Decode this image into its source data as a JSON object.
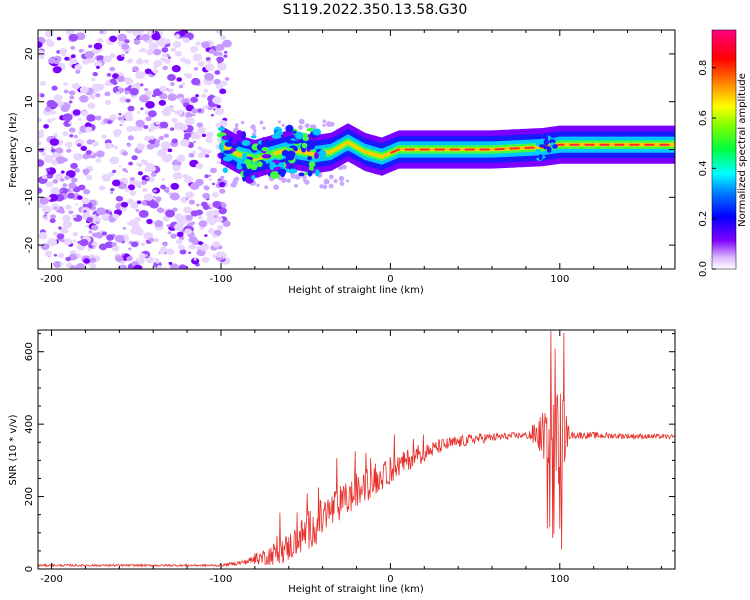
{
  "title": "S119.2022.350.13.58.G30",
  "chart_data": [
    {
      "type": "heatmap",
      "xlabel": "Height of straight line (km)",
      "ylabel": "Frequency (Hz)",
      "xlim": [
        -208,
        168
      ],
      "ylim": [
        -25,
        25
      ],
      "x_ticks": [
        -200,
        -100,
        0,
        100
      ],
      "y_ticks": [
        -20,
        -10,
        0,
        10,
        20
      ],
      "colorbar": {
        "label": "Normalized spectral amplitude",
        "range": [
          0,
          0.95
        ],
        "ticks": [
          0.0,
          0.2,
          0.4,
          0.6,
          0.8
        ]
      },
      "ridge": [
        {
          "x": -100,
          "y": 1
        },
        {
          "x": -90,
          "y": -1
        },
        {
          "x": -80,
          "y": -2
        },
        {
          "x": -70,
          "y": -1
        },
        {
          "x": -60,
          "y": 0
        },
        {
          "x": -45,
          "y": -1
        },
        {
          "x": -35,
          "y": -0.5
        },
        {
          "x": -25,
          "y": 1.5
        },
        {
          "x": -15,
          "y": -0.5
        },
        {
          "x": -5,
          "y": -1.5
        },
        {
          "x": 5,
          "y": 0
        },
        {
          "x": 30,
          "y": 0
        },
        {
          "x": 60,
          "y": 0
        },
        {
          "x": 90,
          "y": 0.5
        },
        {
          "x": 100,
          "y": 1
        },
        {
          "x": 130,
          "y": 1
        },
        {
          "x": 168,
          "y": 1
        }
      ]
    },
    {
      "type": "line",
      "xlabel": "Height of straight line (km)",
      "ylabel": "SNR (10 * v/v)",
      "xlim": [
        -208,
        168
      ],
      "ylim": [
        0,
        660
      ],
      "x_ticks": [
        -200,
        -100,
        0,
        100
      ],
      "y_ticks": [
        0,
        200,
        400,
        600
      ],
      "series": [
        {
          "color": "#e8302a",
          "envelope": [
            {
              "x": -208,
              "base": 10,
              "amp": 6
            },
            {
              "x": -100,
              "base": 10,
              "amp": 6
            },
            {
              "x": -85,
              "base": 20,
              "amp": 15
            },
            {
              "x": -70,
              "base": 40,
              "amp": 60
            },
            {
              "x": -60,
              "base": 60,
              "amp": 80
            },
            {
              "x": -45,
              "base": 120,
              "amp": 120
            },
            {
              "x": -30,
              "base": 180,
              "amp": 100
            },
            {
              "x": -10,
              "base": 240,
              "amp": 80
            },
            {
              "x": 10,
              "base": 300,
              "amp": 60
            },
            {
              "x": 30,
              "base": 340,
              "amp": 40
            },
            {
              "x": 50,
              "base": 360,
              "amp": 30
            },
            {
              "x": 80,
              "base": 370,
              "amp": 15
            },
            {
              "x": 88,
              "base": 370,
              "amp": 100
            },
            {
              "x": 100,
              "base": 370,
              "amp": 300
            },
            {
              "x": 106,
              "base": 370,
              "amp": 20
            },
            {
              "x": 168,
              "base": 365,
              "amp": 12
            }
          ],
          "peak_max": 660
        }
      ]
    }
  ]
}
